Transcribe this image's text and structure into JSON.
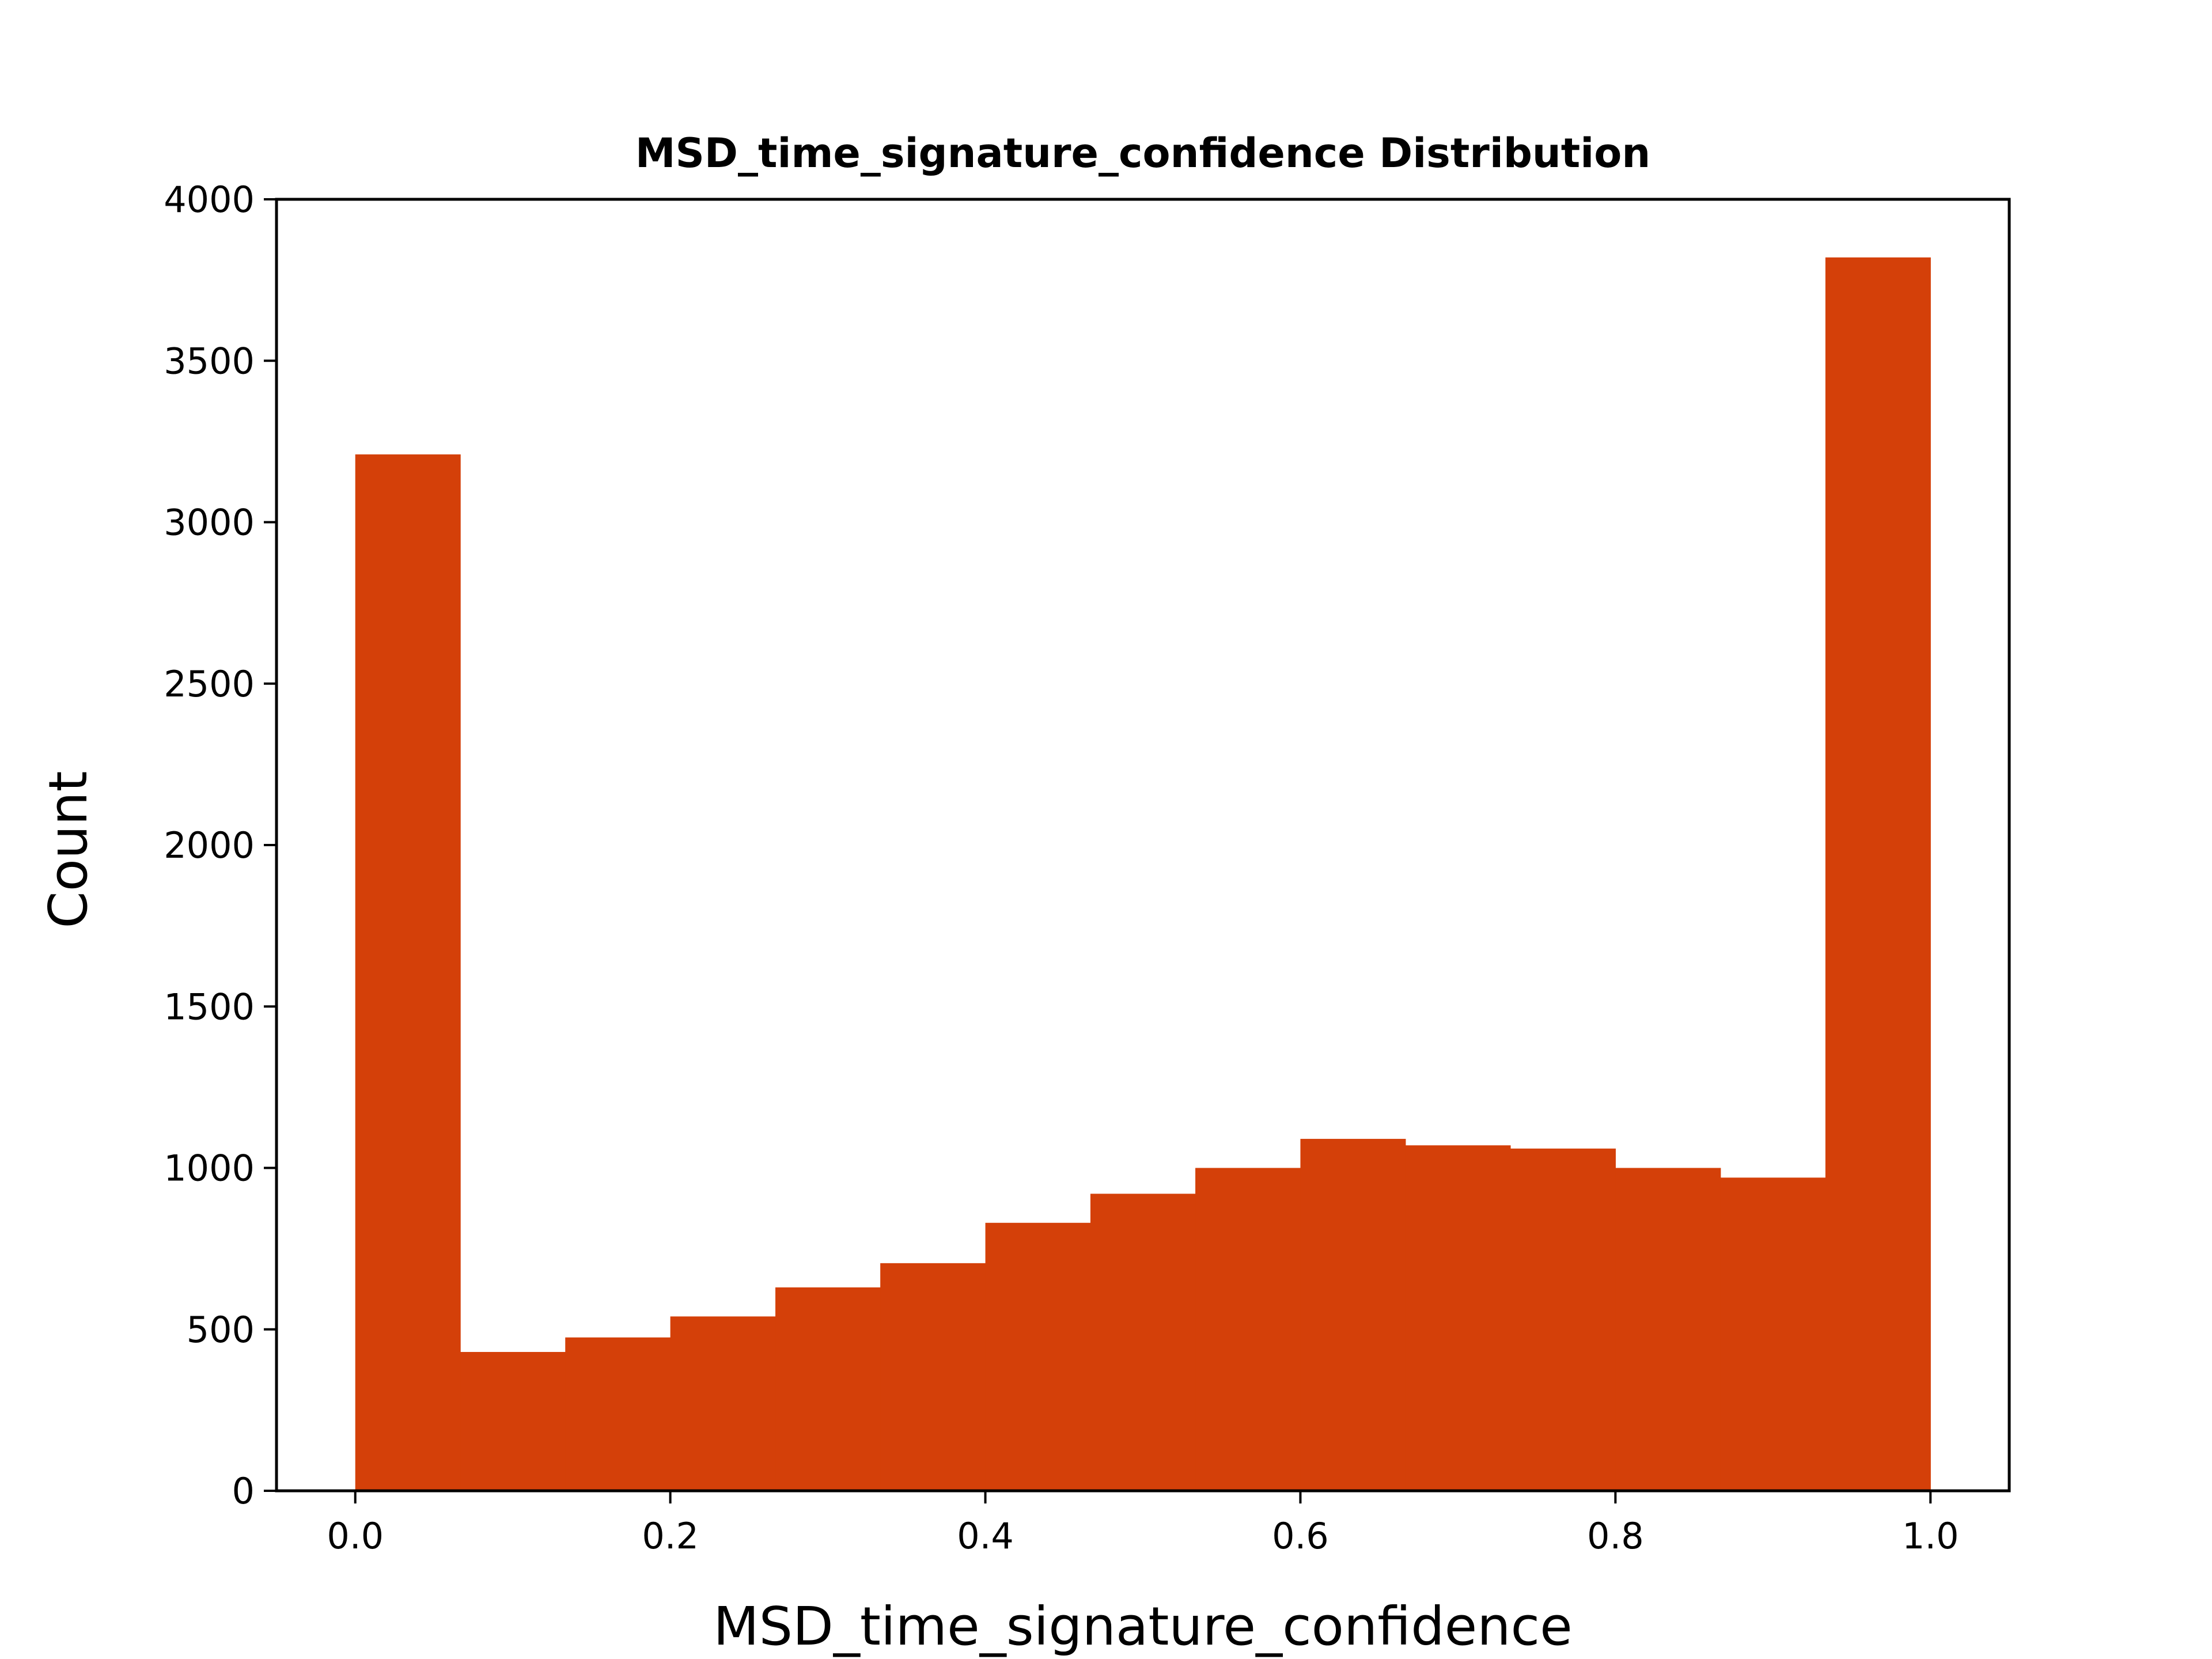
{
  "chart_data": {
    "type": "bar",
    "title": "MSD_time_signature_confidence Distribution",
    "xlabel": "MSD_time_signature_confidence",
    "ylabel": "Count",
    "xlim": [
      -0.05,
      1.05
    ],
    "ylim": [
      0,
      4000
    ],
    "xticks": [
      "0.0",
      "0.2",
      "0.4",
      "0.6",
      "0.8",
      "1.0"
    ],
    "xtick_values": [
      0.0,
      0.2,
      0.4,
      0.6,
      0.8,
      1.0
    ],
    "yticks": [
      "0",
      "500",
      "1000",
      "1500",
      "2000",
      "2500",
      "3000",
      "3500",
      "4000"
    ],
    "ytick_values": [
      0,
      500,
      1000,
      1500,
      2000,
      2500,
      3000,
      3500,
      4000
    ],
    "bin_edges": [
      0.0,
      0.0667,
      0.1333,
      0.2,
      0.2667,
      0.3333,
      0.4,
      0.4667,
      0.5333,
      0.6,
      0.6667,
      0.7333,
      0.8,
      0.8667,
      0.9333,
      1.0
    ],
    "values": [
      3210,
      430,
      475,
      540,
      630,
      705,
      830,
      920,
      1000,
      1090,
      1070,
      1060,
      1000,
      970,
      3820
    ],
    "color": "#d44009",
    "grid": false,
    "legend": "none"
  }
}
